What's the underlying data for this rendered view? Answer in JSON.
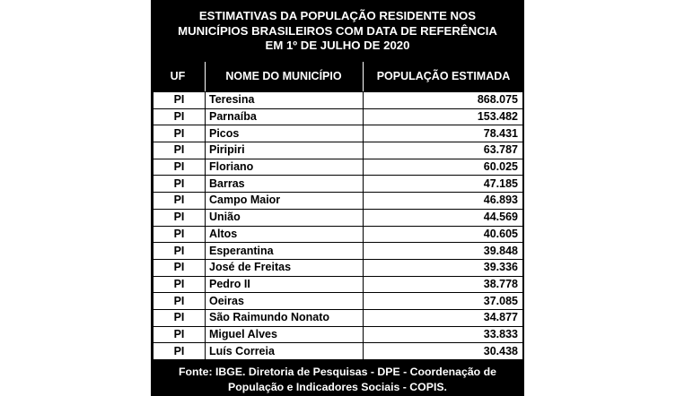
{
  "title": {
    "line1": "ESTIMATIVAS DA POPULAÇÃO RESIDENTE NOS",
    "line2": "MUNICÍPIOS BRASILEIROS COM DATA DE REFERÊNCIA",
    "line3": "EM 1º DE JULHO DE 2020"
  },
  "columns": {
    "uf": "UF",
    "name": "NOME DO MUNICÍPIO",
    "population": "POPULAÇÃO ESTIMADA"
  },
  "rows": [
    {
      "uf": "PI",
      "name": "Teresina",
      "population": "868.075"
    },
    {
      "uf": "PI",
      "name": "Parnaíba",
      "population": "153.482"
    },
    {
      "uf": "PI",
      "name": "Picos",
      "population": "78.431"
    },
    {
      "uf": "PI",
      "name": "Piripiri",
      "population": "63.787"
    },
    {
      "uf": "PI",
      "name": "Floriano",
      "population": "60.025"
    },
    {
      "uf": "PI",
      "name": "Barras",
      "population": "47.185"
    },
    {
      "uf": "PI",
      "name": "Campo Maior",
      "population": "46.893"
    },
    {
      "uf": "PI",
      "name": "União",
      "population": "44.569"
    },
    {
      "uf": "PI",
      "name": "Altos",
      "population": "40.605"
    },
    {
      "uf": "PI",
      "name": "Esperantina",
      "population": "39.848"
    },
    {
      "uf": "PI",
      "name": "José de Freitas",
      "population": "39.336"
    },
    {
      "uf": "PI",
      "name": "Pedro II",
      "population": "38.778"
    },
    {
      "uf": "PI",
      "name": "Oeiras",
      "population": "37.085"
    },
    {
      "uf": "PI",
      "name": "São Raimundo Nonato",
      "population": "34.877"
    },
    {
      "uf": "PI",
      "name": "Miguel Alves",
      "population": "33.833"
    },
    {
      "uf": "PI",
      "name": "Luís Correia",
      "population": "30.438"
    }
  ],
  "footer": {
    "line1": "Fonte: IBGE. Diretoria de Pesquisas - DPE -  Coordenação de",
    "line2": "População e Indicadores Sociais - COPIS."
  },
  "colors": {
    "background": "#000000",
    "text_on_dark": "#ffffff",
    "table_body": "#ffffff"
  }
}
